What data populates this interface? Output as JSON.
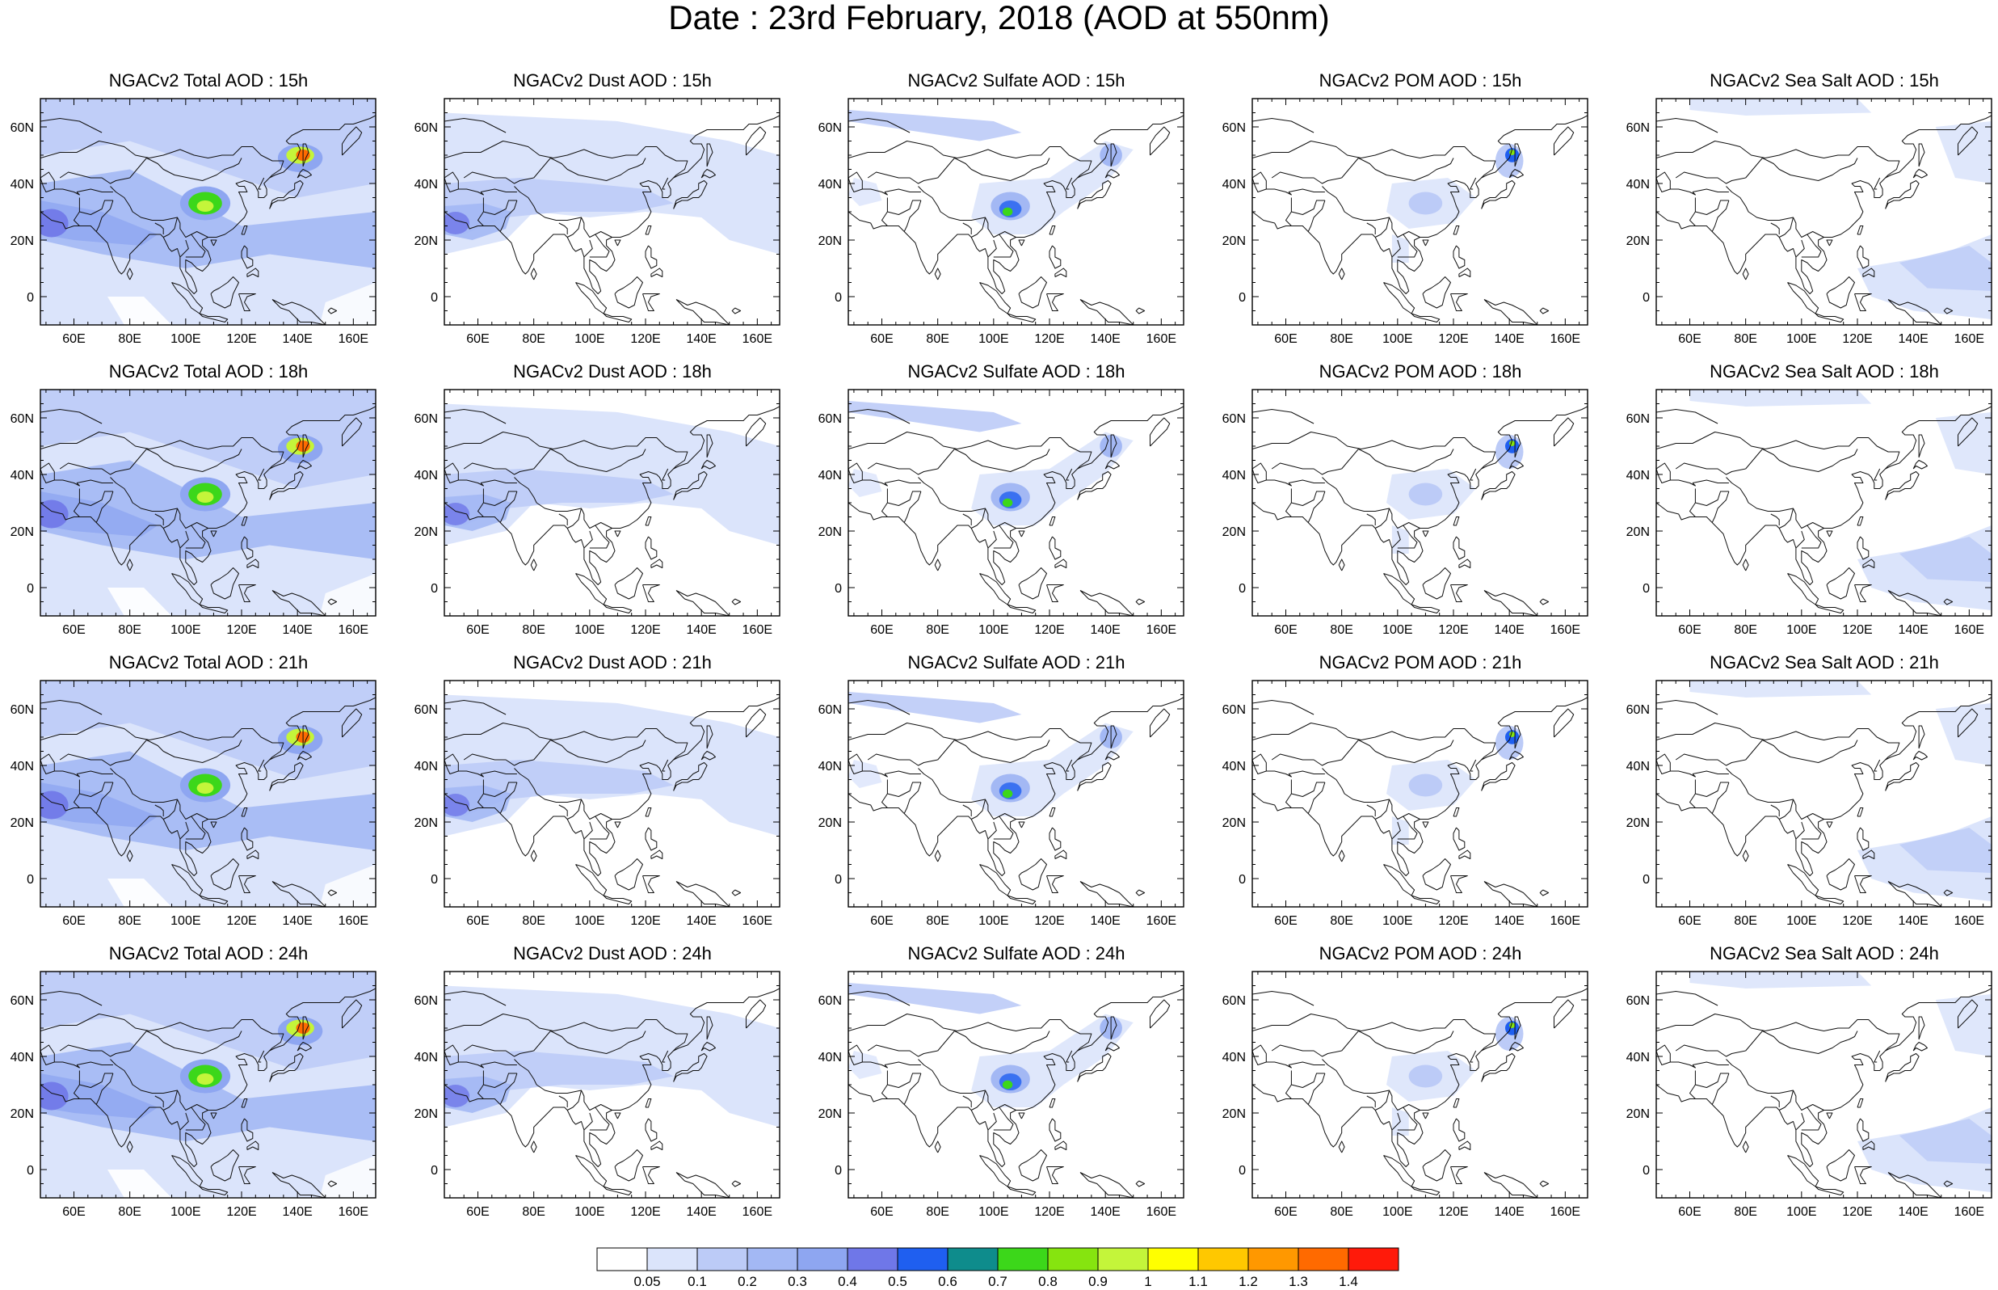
{
  "title": "Date : 23rd February, 2018 (AOD at 550nm)",
  "map_axes": {
    "x_ticks": [
      "60E",
      "80E",
      "100E",
      "120E",
      "140E",
      "160E"
    ],
    "y_ticks": [
      "60N",
      "40N",
      "20N",
      "0"
    ],
    "lon_range": [
      48,
      168
    ],
    "lat_range": [
      -10,
      70
    ]
  },
  "rows": [
    {
      "time": "15h",
      "panels": [
        {
          "type": "total",
          "title": "NGACv2 Total AOD : 15h"
        },
        {
          "type": "dust",
          "title": "NGACv2 Dust AOD : 15h"
        },
        {
          "type": "sulfate",
          "title": "NGACv2 Sulfate AOD : 15h"
        },
        {
          "type": "pom",
          "title": "NGACv2 POM AOD : 15h"
        },
        {
          "type": "seasalt",
          "title": "NGACv2 Sea Salt AOD : 15h"
        }
      ]
    },
    {
      "time": "18h",
      "panels": [
        {
          "type": "total",
          "title": "NGACv2 Total AOD : 18h"
        },
        {
          "type": "dust",
          "title": "NGACv2 Dust AOD : 18h"
        },
        {
          "type": "sulfate",
          "title": "NGACv2 Sulfate AOD : 18h"
        },
        {
          "type": "pom",
          "title": "NGACv2 POM AOD : 18h"
        },
        {
          "type": "seasalt",
          "title": "NGACv2 Sea Salt AOD : 18h"
        }
      ]
    },
    {
      "time": "21h",
      "panels": [
        {
          "type": "total",
          "title": "NGACv2 Total AOD : 21h"
        },
        {
          "type": "dust",
          "title": "NGACv2 Dust AOD : 21h"
        },
        {
          "type": "sulfate",
          "title": "NGACv2 Sulfate AOD : 21h"
        },
        {
          "type": "pom",
          "title": "NGACv2 POM AOD : 21h"
        },
        {
          "type": "seasalt",
          "title": "NGACv2 Sea Salt AOD : 21h"
        }
      ]
    },
    {
      "time": "24h",
      "panels": [
        {
          "type": "total",
          "title": "NGACv2 Total AOD : 24h"
        },
        {
          "type": "dust",
          "title": "NGACv2 Dust AOD : 24h"
        },
        {
          "type": "sulfate",
          "title": "NGACv2 Sulfate AOD : 24h"
        },
        {
          "type": "pom",
          "title": "NGACv2 POM AOD : 24h"
        },
        {
          "type": "seasalt",
          "title": "NGACv2 Sea Salt  AOD : 24h"
        }
      ]
    }
  ],
  "colorbar": {
    "labels": [
      "0.05",
      "0.1",
      "0.2",
      "0.3",
      "0.4",
      "0.5",
      "0.6",
      "0.7",
      "0.8",
      "0.9",
      "1",
      "1.1",
      "1.2",
      "1.3",
      "1.4"
    ],
    "colors": [
      "#ffffff",
      "#dbe4fb",
      "#bccbf7",
      "#a3b8f4",
      "#8ea6f1",
      "#6f77e8",
      "#1f5ff0",
      "#0e8c8c",
      "#3cd71a",
      "#86e40f",
      "#c4f53a",
      "#ffff00",
      "#ffc800",
      "#ff9800",
      "#ff6a00",
      "#ff1a0a"
    ]
  }
}
